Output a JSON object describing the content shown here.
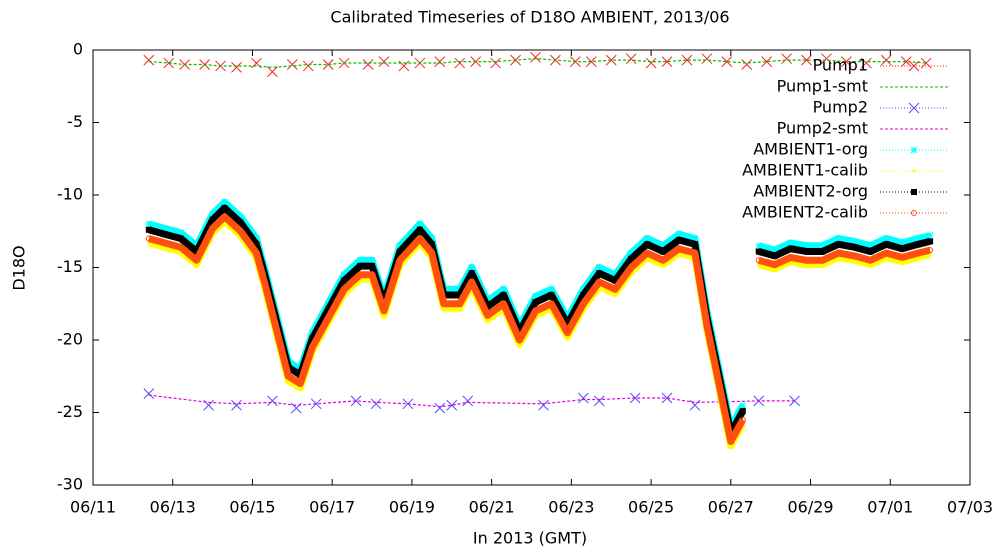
{
  "chart_data": {
    "type": "line",
    "title": "Calibrated Timeseries of D18O AMBIENT, 2013/06",
    "x_label": "In 2013 (GMT)",
    "y_label": "D18O",
    "xlim": [
      11,
      33
    ],
    "xticks": [
      {
        "value": 11,
        "label": "06/11"
      },
      {
        "value": 13,
        "label": "06/13"
      },
      {
        "value": 15,
        "label": "06/15"
      },
      {
        "value": 17,
        "label": "06/17"
      },
      {
        "value": 19,
        "label": "06/19"
      },
      {
        "value": 21,
        "label": "06/21"
      },
      {
        "value": 23,
        "label": "06/23"
      },
      {
        "value": 25,
        "label": "06/25"
      },
      {
        "value": 27,
        "label": "06/27"
      },
      {
        "value": 29,
        "label": "06/29"
      },
      {
        "value": 31,
        "label": "07/01"
      },
      {
        "value": 33,
        "label": "07/03"
      }
    ],
    "ylim": [
      -30,
      0
    ],
    "yticks": [
      -30,
      -25,
      -20,
      -15,
      -10,
      -5,
      0
    ],
    "legend": "top-right",
    "series": [
      {
        "name": "Pump1",
        "color": "#ff2020",
        "style": "points",
        "marker": "cross",
        "x": [
          12.4,
          12.9,
          13.3,
          13.8,
          14.2,
          14.6,
          15.1,
          15.5,
          16.0,
          16.4,
          16.9,
          17.3,
          17.9,
          18.3,
          18.8,
          19.2,
          19.7,
          20.2,
          20.6,
          21.1,
          21.6,
          22.1,
          22.6,
          23.1,
          23.5,
          24.0,
          24.5,
          25.0,
          25.4,
          25.9,
          26.4,
          26.9,
          27.4,
          27.9,
          28.4,
          28.9,
          29.4,
          29.9,
          30.4,
          30.9,
          31.4,
          31.9
        ],
        "values": [
          -0.7,
          -0.9,
          -1.0,
          -1.0,
          -1.1,
          -1.2,
          -0.9,
          -1.5,
          -1.0,
          -1.1,
          -1.0,
          -0.9,
          -1.0,
          -0.8,
          -1.1,
          -0.9,
          -0.8,
          -0.9,
          -0.8,
          -0.9,
          -0.7,
          -0.5,
          -0.7,
          -0.8,
          -0.8,
          -0.7,
          -0.6,
          -0.9,
          -0.8,
          -0.7,
          -0.6,
          -0.8,
          -1.0,
          -0.8,
          -0.6,
          -0.7,
          -0.6,
          -0.8,
          -0.9,
          -0.7,
          -0.8,
          -0.9
        ]
      },
      {
        "name": "Pump1-smt",
        "color": "#00c000",
        "style": "line",
        "dash": true,
        "x": [
          12.4,
          12.9,
          13.3,
          13.8,
          14.2,
          14.6,
          15.1,
          15.5,
          16.0,
          16.4,
          16.9,
          17.3,
          17.9,
          18.3,
          18.8,
          19.2,
          19.7,
          20.2,
          20.6,
          21.1,
          21.6,
          22.1,
          22.6,
          23.1,
          23.5,
          24.0,
          24.5,
          25.0,
          25.4,
          25.9,
          26.4,
          26.9,
          27.4,
          27.9,
          28.4,
          28.9,
          29.4,
          29.9,
          30.4,
          30.9,
          31.4,
          31.9
        ],
        "values": [
          -0.8,
          -0.9,
          -1.0,
          -1.0,
          -1.1,
          -1.1,
          -1.1,
          -1.2,
          -1.1,
          -1.0,
          -1.0,
          -0.9,
          -0.9,
          -0.9,
          -0.9,
          -0.9,
          -0.9,
          -0.8,
          -0.8,
          -0.8,
          -0.7,
          -0.6,
          -0.7,
          -0.8,
          -0.8,
          -0.7,
          -0.7,
          -0.8,
          -0.8,
          -0.7,
          -0.7,
          -0.8,
          -0.9,
          -0.8,
          -0.7,
          -0.7,
          -0.7,
          -0.8,
          -0.8,
          -0.8,
          -0.8,
          -0.9
        ]
      },
      {
        "name": "Pump2",
        "color": "#5050ff",
        "style": "points",
        "marker": "cross",
        "x": [
          12.4,
          13.9,
          14.6,
          15.5,
          16.1,
          16.6,
          17.6,
          18.1,
          18.9,
          19.7,
          20.0,
          20.4,
          22.3,
          23.3,
          23.7,
          24.6,
          25.4,
          26.1,
          27.7,
          28.6
        ],
        "values": [
          -23.7,
          -24.5,
          -24.5,
          -24.2,
          -24.7,
          -24.4,
          -24.2,
          -24.4,
          -24.4,
          -24.7,
          -24.5,
          -24.2,
          -24.5,
          -24.0,
          -24.2,
          -24.0,
          -24.0,
          -24.5,
          -24.2,
          -24.2
        ]
      },
      {
        "name": "Pump2-smt",
        "color": "#e000e0",
        "style": "line",
        "dash": true,
        "x": [
          12.4,
          13.9,
          14.6,
          15.5,
          16.1,
          16.6,
          17.6,
          18.1,
          18.9,
          19.7,
          20.0,
          20.4,
          22.3,
          23.3,
          23.7,
          24.6,
          25.4,
          26.1,
          27.7,
          28.6
        ],
        "values": [
          -23.8,
          -24.3,
          -24.4,
          -24.3,
          -24.5,
          -24.4,
          -24.2,
          -24.3,
          -24.4,
          -24.6,
          -24.5,
          -24.3,
          -24.4,
          -24.1,
          -24.1,
          -24.0,
          -24.0,
          -24.3,
          -24.2,
          -24.2
        ]
      },
      {
        "name": "AMBIENT1-org",
        "color": "#00ffff",
        "style": "band",
        "marker": "star",
        "x": [
          12.4,
          12.8,
          13.2,
          13.6,
          14.0,
          14.3,
          14.7,
          15.1,
          15.3,
          15.9,
          16.2,
          16.5,
          16.9,
          17.3,
          17.7,
          18.0,
          18.3,
          18.7,
          19.2,
          19.5,
          19.8,
          20.2,
          20.5,
          20.9,
          21.3,
          21.7,
          22.1,
          22.5,
          22.9,
          23.3,
          23.7,
          24.1,
          24.5,
          24.9,
          25.3,
          25.7,
          26.1,
          26.4,
          26.7,
          27.0,
          27.3,
          27.5,
          27.7,
          28.1,
          28.5,
          28.9,
          29.3,
          29.7,
          30.1,
          30.5,
          30.9,
          31.3,
          31.7,
          32.0
        ],
        "values": [
          -12,
          -12.3,
          -12.6,
          -13.5,
          -11.3,
          -10.5,
          -11.5,
          -13,
          -15,
          -21.5,
          -22,
          -19.5,
          -17.5,
          -15.5,
          -14.5,
          -14.5,
          -17,
          -13.5,
          -12,
          -13,
          -16.5,
          -16.5,
          -15,
          -17.3,
          -16.5,
          -19,
          -17,
          -16.5,
          -18.5,
          -16.5,
          -15,
          -15.5,
          -14,
          -13,
          -13.5,
          -12.7,
          -13,
          -18,
          -22,
          -26,
          -24.5,
          null,
          -13.5,
          -13.8,
          -13.3,
          -13.5,
          -13.5,
          -13,
          -13.2,
          -13.5,
          -13,
          -13.3,
          -13,
          -12.8
        ]
      },
      {
        "name": "AMBIENT1-calib",
        "color": "#ffff00",
        "style": "band",
        "marker": "dot",
        "x": [
          12.4,
          12.8,
          13.2,
          13.6,
          14.0,
          14.3,
          14.7,
          15.1,
          15.3,
          15.9,
          16.2,
          16.5,
          16.9,
          17.3,
          17.7,
          18.0,
          18.3,
          18.7,
          19.2,
          19.5,
          19.8,
          20.2,
          20.5,
          20.9,
          21.3,
          21.7,
          22.1,
          22.5,
          22.9,
          23.3,
          23.7,
          24.1,
          24.5,
          24.9,
          25.3,
          25.7,
          26.1,
          26.4,
          26.7,
          27.0,
          27.3,
          27.5,
          27.7,
          28.1,
          28.5,
          28.9,
          29.3,
          29.7,
          30.1,
          30.5,
          30.9,
          31.3,
          31.7,
          32.0
        ],
        "values": [
          -13.3,
          -13.6,
          -13.9,
          -14.8,
          -12.6,
          -11.8,
          -12.8,
          -14.3,
          -16.3,
          -22.8,
          -23.3,
          -20.8,
          -18.8,
          -16.8,
          -15.8,
          -15.8,
          -18.3,
          -14.8,
          -13.3,
          -14.3,
          -17.8,
          -17.8,
          -16.3,
          -18.6,
          -17.8,
          -20.3,
          -18.3,
          -17.8,
          -19.8,
          -17.8,
          -16.3,
          -16.8,
          -15.3,
          -14.3,
          -14.8,
          -14,
          -14.3,
          -19.3,
          -23.3,
          -27.3,
          -25.8,
          null,
          -14.8,
          -15.1,
          -14.6,
          -14.8,
          -14.8,
          -14.3,
          -14.5,
          -14.8,
          -14.3,
          -14.6,
          -14.3,
          -14.1
        ]
      },
      {
        "name": "AMBIENT2-org",
        "color": "#000000",
        "style": "band",
        "marker": "square",
        "x": [
          12.4,
          12.8,
          13.2,
          13.6,
          14.0,
          14.3,
          14.7,
          15.1,
          15.3,
          15.9,
          16.2,
          16.5,
          16.9,
          17.3,
          17.7,
          18.0,
          18.3,
          18.7,
          19.2,
          19.5,
          19.8,
          20.2,
          20.5,
          20.9,
          21.3,
          21.7,
          22.1,
          22.5,
          22.9,
          23.3,
          23.7,
          24.1,
          24.5,
          24.9,
          25.3,
          25.7,
          26.1,
          26.4,
          26.7,
          27.0,
          27.3,
          27.5,
          27.7,
          28.1,
          28.5,
          28.9,
          29.3,
          29.7,
          30.1,
          30.5,
          30.9,
          31.3,
          31.7,
          32.0
        ],
        "values": [
          -12.4,
          -12.7,
          -13,
          -13.9,
          -11.7,
          -10.9,
          -11.9,
          -13.4,
          -15.4,
          -21.9,
          -22.4,
          -19.9,
          -17.9,
          -15.9,
          -14.9,
          -14.9,
          -17.4,
          -13.9,
          -12.4,
          -13.4,
          -16.9,
          -16.9,
          -15.4,
          -17.7,
          -16.9,
          -19.4,
          -17.4,
          -16.9,
          -18.9,
          -16.9,
          -15.4,
          -15.9,
          -14.4,
          -13.4,
          -13.9,
          -13.1,
          -13.4,
          -18.4,
          -22.4,
          -26.4,
          -24.9,
          null,
          -13.9,
          -14.2,
          -13.7,
          -13.9,
          -13.9,
          -13.4,
          -13.6,
          -13.9,
          -13.4,
          -13.7,
          -13.4,
          -13.2
        ]
      },
      {
        "name": "AMBIENT2-calib",
        "color": "#ff5010",
        "style": "band",
        "marker": "circle",
        "x": [
          12.4,
          12.8,
          13.2,
          13.6,
          14.0,
          14.3,
          14.7,
          15.1,
          15.3,
          15.9,
          16.2,
          16.5,
          16.9,
          17.3,
          17.7,
          18.0,
          18.3,
          18.7,
          19.2,
          19.5,
          19.8,
          20.2,
          20.5,
          20.9,
          21.3,
          21.7,
          22.1,
          22.5,
          22.9,
          23.3,
          23.7,
          24.1,
          24.5,
          24.9,
          25.3,
          25.7,
          26.1,
          26.4,
          26.7,
          27.0,
          27.3,
          27.5,
          27.7,
          28.1,
          28.5,
          28.9,
          29.3,
          29.7,
          30.1,
          30.5,
          30.9,
          31.3,
          31.7,
          32.0
        ],
        "values": [
          -13,
          -13.3,
          -13.6,
          -14.5,
          -12.3,
          -11.5,
          -12.5,
          -14,
          -16,
          -22.5,
          -23,
          -20.5,
          -18.5,
          -16.5,
          -15.5,
          -15.5,
          -18,
          -14.5,
          -13,
          -14,
          -17.5,
          -17.5,
          -16,
          -18.3,
          -17.5,
          -20,
          -18,
          -17.5,
          -19.5,
          -17.5,
          -16,
          -16.5,
          -15,
          -14,
          -14.5,
          -13.7,
          -14,
          -19,
          -23,
          -27,
          -25.5,
          null,
          -14.5,
          -14.8,
          -14.3,
          -14.5,
          -14.5,
          -14,
          -14.2,
          -14.5,
          -14,
          -14.3,
          -14,
          -13.8
        ]
      }
    ]
  }
}
